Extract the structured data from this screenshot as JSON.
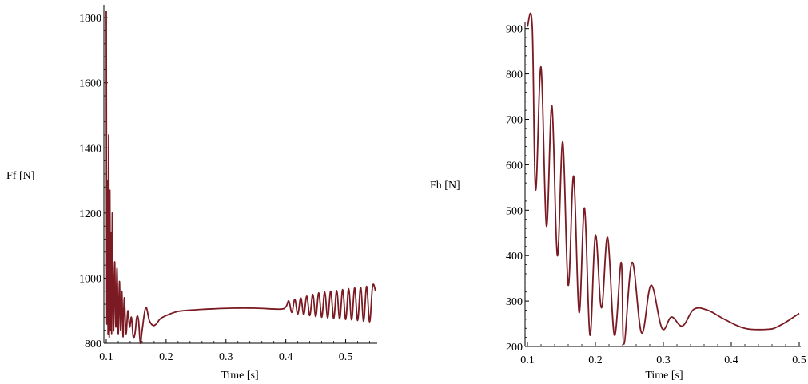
{
  "chart_data": [
    {
      "type": "line",
      "ylabel": "Ff [N]",
      "xlabel": "Time [s]",
      "xlim": [
        0.1,
        0.55
      ],
      "ylim": [
        800,
        1820
      ],
      "xticks": [
        0.1,
        0.2,
        0.3,
        0.4,
        0.5
      ],
      "xtick_labels": [
        "0.1",
        "0.2",
        "0.3",
        "0.4",
        "0.5"
      ],
      "yticks": [
        800,
        1000,
        1200,
        1400,
        1600,
        1800
      ],
      "ytick_labels": [
        "800",
        "1000",
        "1200",
        "1400",
        "1600",
        "1800"
      ],
      "line_color": "#7b1a22",
      "grid": false,
      "series": [
        {
          "x": [
            0.1,
            0.101,
            0.102,
            0.103,
            0.104,
            0.105,
            0.106,
            0.107,
            0.108,
            0.109,
            0.11,
            0.112,
            0.114,
            0.116,
            0.118,
            0.12,
            0.122,
            0.124,
            0.126,
            0.128,
            0.13,
            0.133,
            0.136,
            0.139,
            0.142,
            0.145,
            0.148,
            0.151,
            0.154,
            0.157,
            0.16,
            0.166,
            0.172,
            0.178,
            0.184,
            0.19,
            0.2,
            0.22,
            0.25,
            0.28,
            0.31,
            0.35,
            0.39,
            0.4,
            0.405,
            0.41,
            0.415,
            0.42,
            0.425,
            0.43,
            0.435,
            0.44,
            0.445,
            0.45,
            0.455,
            0.46,
            0.465,
            0.47,
            0.475,
            0.48,
            0.485,
            0.49,
            0.495,
            0.5,
            0.505,
            0.51,
            0.515,
            0.52,
            0.525,
            0.53,
            0.535,
            0.54,
            0.545,
            0.55
          ],
          "y": [
            1820,
            870,
            1300,
            830,
            1440,
            820,
            1270,
            840,
            1140,
            830,
            1200,
            840,
            1050,
            850,
            1030,
            830,
            990,
            840,
            960,
            820,
            940,
            830,
            900,
            850,
            880,
            820,
            830,
            880,
            870,
            800,
            840,
            910,
            870,
            855,
            860,
            875,
            885,
            898,
            903,
            906,
            908,
            908,
            905,
            912,
            930,
            895,
            935,
            890,
            940,
            888,
            945,
            885,
            950,
            882,
            955,
            880,
            958,
            878,
            960,
            876,
            962,
            875,
            965,
            873,
            968,
            872,
            970,
            870,
            972,
            868,
            975,
            866,
            976,
            960
          ]
        }
      ]
    },
    {
      "type": "line",
      "ylabel": "Fh [N]",
      "xlabel": "Time [s]",
      "xlim": [
        0.1,
        0.5
      ],
      "ylim": [
        200,
        910
      ],
      "xticks": [
        0.1,
        0.2,
        0.3,
        0.4,
        0.5
      ],
      "xtick_labels": [
        "0.1",
        "0.2",
        "0.3",
        "0.4",
        "0.5"
      ],
      "yticks": [
        200,
        300,
        400,
        500,
        600,
        700,
        800,
        900
      ],
      "ytick_labels": [
        "200",
        "300",
        "400",
        "500",
        "600",
        "700",
        "800",
        "900"
      ],
      "line_color": "#7b1a22",
      "grid": false,
      "series": [
        {
          "x": [
            0.1,
            0.107,
            0.112,
            0.12,
            0.128,
            0.136,
            0.144,
            0.152,
            0.16,
            0.168,
            0.176,
            0.184,
            0.192,
            0.2,
            0.209,
            0.218,
            0.228,
            0.238,
            0.242,
            0.254,
            0.268,
            0.282,
            0.298,
            0.312,
            0.328,
            0.345,
            0.365,
            0.39,
            0.42,
            0.455,
            0.47,
            0.485,
            0.5
          ],
          "y": [
            905,
            905,
            545,
            815,
            465,
            730,
            400,
            650,
            335,
            575,
            275,
            505,
            225,
            445,
            285,
            440,
            225,
            385,
            205,
            385,
            230,
            335,
            240,
            265,
            245,
            282,
            280,
            260,
            240,
            238,
            245,
            258,
            273
          ]
        }
      ]
    }
  ]
}
